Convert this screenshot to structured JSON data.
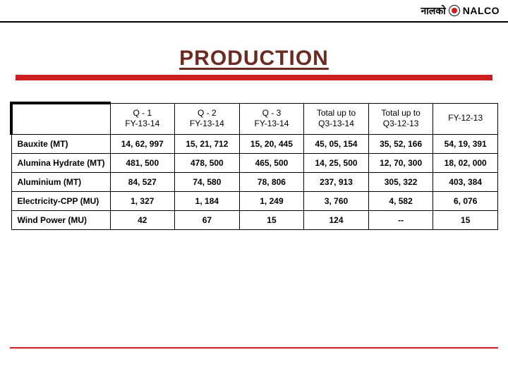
{
  "header": {
    "logo_devanagari": "नालको",
    "logo_text": "NALCO"
  },
  "title": "PRODUCTION",
  "colors": {
    "title_color": "#6b2b20",
    "accent_red": "#cc2020",
    "border": "#000000",
    "background": "#ffffff"
  },
  "table": {
    "font_size": 12,
    "columns": [
      {
        "l1": "",
        "l2": ""
      },
      {
        "l1": "Q - 1",
        "l2": "FY-13-14"
      },
      {
        "l1": "Q - 2",
        "l2": "FY-13-14"
      },
      {
        "l1": "Q - 3",
        "l2": "FY-13-14"
      },
      {
        "l1": "Total up to",
        "l2": "Q3-13-14"
      },
      {
        "l1": "Total up to",
        "l2": "Q3-12-13"
      },
      {
        "l1": "FY-12-13",
        "l2": ""
      }
    ],
    "rows": [
      {
        "label": "Bauxite (MT)",
        "bold": true,
        "cells": [
          "14, 62, 997",
          "15, 21, 712",
          "15, 20, 445",
          "45, 05, 154",
          "35, 52, 166",
          "54, 19, 391"
        ]
      },
      {
        "label": "Alumina Hydrate (MT)",
        "bold": true,
        "cells": [
          "481, 500",
          "478, 500",
          "465, 500",
          "14, 25, 500",
          "12, 70, 300",
          "18, 02, 000"
        ]
      },
      {
        "label": "Aluminium (MT)",
        "bold": true,
        "cells": [
          "84, 527",
          "74, 580",
          "78, 806",
          "237, 913",
          "305, 322",
          "403, 384"
        ]
      },
      {
        "label": "Electricity-CPP (MU)",
        "bold": true,
        "cells": [
          "1, 327",
          "1, 184",
          "1, 249",
          "3, 760",
          "4, 582",
          "6, 076"
        ]
      },
      {
        "label": "Wind Power (MU)",
        "bold": true,
        "cells": [
          "42",
          "67",
          "15",
          "124",
          "--",
          "15"
        ]
      }
    ]
  }
}
